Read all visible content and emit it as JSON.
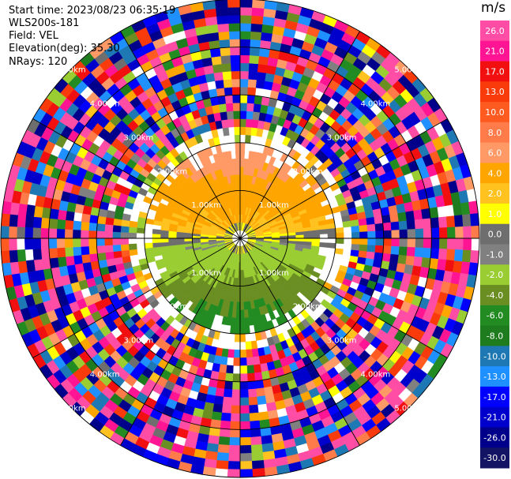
{
  "header": {
    "start_time": "Start time: 2023/08/23 06:35:19",
    "instrument": "WLS200s-181",
    "field": "Field: VEL",
    "elevation": "Elevation(deg): 35.30",
    "nrays": "NRays: 120"
  },
  "chart_data": {
    "type": "heatmap",
    "projection": "polar (PPI scan)",
    "field": "VEL",
    "units": "m/s",
    "range_rings_km": [
      1.0,
      2.0,
      3.0,
      4.0,
      5.0
    ],
    "ring_labels": [
      "1.00km",
      "2.00km",
      "3.00km",
      "4.00km",
      "5.00km"
    ],
    "nrays": 120,
    "max_range_km": 5.0,
    "colorbar": {
      "label": "m/s",
      "ticks": [
        "26.0",
        "21.0",
        "17.0",
        "13.0",
        "10.0",
        "8.0",
        "6.0",
        "4.0",
        "2.0",
        "1.0",
        "0.0",
        "-1.0",
        "-2.0",
        "-4.0",
        "-6.0",
        "-8.0",
        "-10.0",
        "-13.0",
        "-17.0",
        "-21.0",
        "-26.0",
        "-30.0"
      ],
      "colors": [
        "#ff4da6",
        "#ff1493",
        "#f10f0f",
        "#f93a0a",
        "#ff5a1f",
        "#ff7b4a",
        "#ff9966",
        "#ffa500",
        "#ffc21e",
        "#ffff00",
        "#6e6e6e",
        "#808080",
        "#9acd32",
        "#6b8e23",
        "#228b22",
        "#1e7b1e",
        "#1e78b4",
        "#1e90ff",
        "#0000ff",
        "#0000cd",
        "#00008b",
        "#141464"
      ]
    },
    "velocity_pattern": {
      "north_half_inner": "positive 1 to 6 m/s (yellow/orange)",
      "south_half_inner": "negative -1 to -8 m/s (green)",
      "near_zero_band": "0.0 to -1.0 m/s (gray) along east-west axis",
      "outer_ranges": "noise across full colour scale beyond ~2.1 km"
    }
  }
}
